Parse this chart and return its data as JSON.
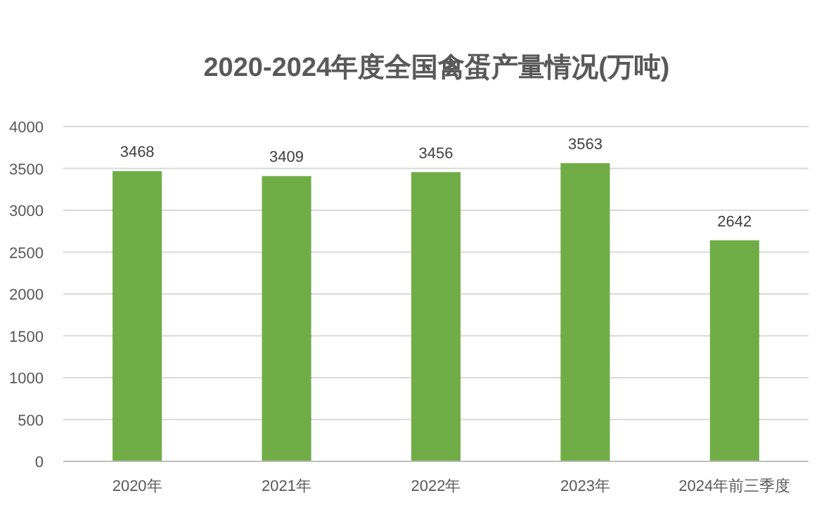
{
  "chart_data": {
    "type": "bar",
    "title": "2020-2024年度全国禽蛋产量情况(万吨)",
    "categories": [
      "2020年",
      "2021年",
      "2022年",
      "2023年",
      "2024年前三季度"
    ],
    "values": [
      3468,
      3409,
      3456,
      3563,
      2642
    ],
    "color": "#70ad47",
    "ylim": [
      0,
      4000
    ],
    "yticks": [
      0,
      500,
      1000,
      1500,
      2000,
      2500,
      3000,
      3500,
      4000
    ],
    "grid": "y",
    "data_labels": true
  }
}
